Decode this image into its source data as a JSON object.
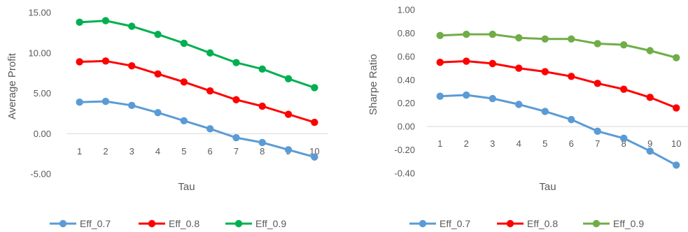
{
  "chart_data": [
    {
      "type": "line",
      "xlabel": "Tau",
      "ylabel": "Average Profit",
      "x": [
        1,
        2,
        3,
        4,
        5,
        6,
        7,
        8,
        9,
        10
      ],
      "ylim": [
        -5,
        15
      ],
      "yticks": [
        "15.00",
        "10.00",
        "5.00",
        "0.00",
        "-5.00"
      ],
      "ytick_values": [
        15,
        10,
        5,
        0,
        -5
      ],
      "grid": false,
      "legend": "bottom",
      "series": [
        {
          "name": "Eff_0.7",
          "color": "#5B9BD5",
          "values": [
            3.9,
            4.0,
            3.5,
            2.6,
            1.6,
            0.6,
            -0.5,
            -1.1,
            -2.0,
            -2.9
          ]
        },
        {
          "name": "Eff_0.8",
          "color": "#FF0000",
          "values": [
            8.9,
            9.0,
            8.4,
            7.4,
            6.4,
            5.3,
            4.2,
            3.4,
            2.4,
            1.4
          ]
        },
        {
          "name": "Eff_0.9",
          "color": "#00B050",
          "values": [
            13.8,
            14.0,
            13.3,
            12.3,
            11.2,
            10.0,
            8.8,
            8.0,
            6.8,
            5.7
          ]
        }
      ]
    },
    {
      "type": "line",
      "xlabel": "Tau",
      "ylabel": "Sharpe Ratio",
      "x": [
        1,
        2,
        3,
        4,
        5,
        6,
        7,
        8,
        9,
        10
      ],
      "ylim": [
        -0.4,
        1.0
      ],
      "yticks": [
        "1.00",
        "0.80",
        "0.60",
        "0.40",
        "0.20",
        "0.00",
        "-0.20",
        "-0.40"
      ],
      "ytick_values": [
        1.0,
        0.8,
        0.6,
        0.4,
        0.2,
        0.0,
        -0.2,
        -0.4
      ],
      "grid": false,
      "legend": "bottom",
      "series": [
        {
          "name": "Eff_0.7",
          "color": "#5B9BD5",
          "values": [
            0.26,
            0.27,
            0.24,
            0.19,
            0.13,
            0.06,
            -0.04,
            -0.1,
            -0.21,
            -0.33
          ]
        },
        {
          "name": "Eff_0.8",
          "color": "#FF0000",
          "values": [
            0.55,
            0.56,
            0.54,
            0.5,
            0.47,
            0.43,
            0.37,
            0.32,
            0.25,
            0.16
          ]
        },
        {
          "name": "Eff_0.9",
          "color": "#70AD47",
          "values": [
            0.78,
            0.79,
            0.79,
            0.76,
            0.75,
            0.75,
            0.71,
            0.7,
            0.65,
            0.59
          ]
        }
      ]
    }
  ]
}
